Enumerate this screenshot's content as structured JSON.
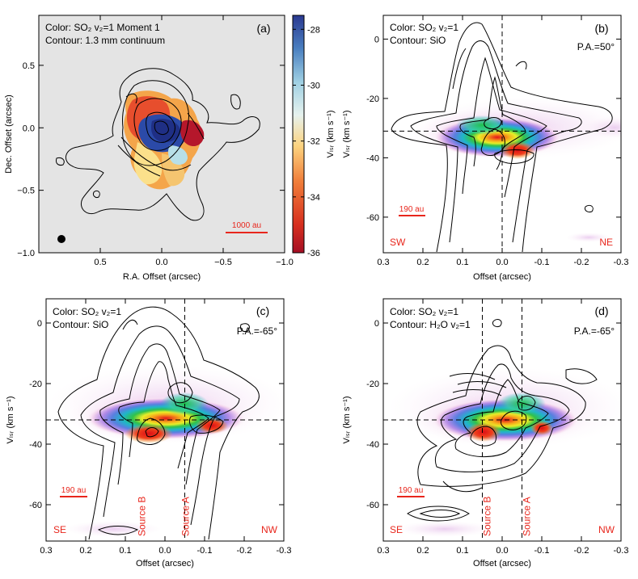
{
  "colors": {
    "accent_red": "#e8261c",
    "panel_a_bg": "#e4e4e4",
    "colorbar": [
      "#b2182b",
      "#e34a33",
      "#f4a340",
      "#fde58a",
      "#d9efe8",
      "#8cc7de",
      "#4575b4",
      "#2c3e8f"
    ]
  },
  "chart_data": [
    {
      "type": "heatmap",
      "panel": "a",
      "panel_label": "(a)",
      "legend_color": "Color: SO₂ v₂=1 Moment 1",
      "legend_contour": "Contour: 1.3 mm continuum",
      "xlabel": "R.A. Offset (arcsec)",
      "ylabel": "Dec. Offset (arcsec)",
      "xlim": [
        1.0,
        -1.0
      ],
      "ylim": [
        -1.0,
        0.9
      ],
      "xticks": [
        0.5,
        0.0,
        -0.5,
        -1.0
      ],
      "xtick_labels": [
        "0.5",
        "0.0",
        "−0.5",
        "−1.0"
      ],
      "yticks": [
        0.5,
        0.0,
        -0.5,
        -1.0
      ],
      "ytick_labels": [
        "0.5",
        "0.0",
        "−0.5",
        "−1.0"
      ],
      "scale_bar": "1000 au",
      "colorbar": {
        "label": "Vₗₛᵣ (km s⁻¹)",
        "range": [
          -36,
          -27.5
        ],
        "ticks": [
          -28,
          -30,
          -32,
          -34,
          -36
        ],
        "tick_labels": [
          "-28",
          "-30",
          "-32",
          "-34",
          "-36"
        ]
      }
    },
    {
      "type": "heatmap",
      "panel": "b",
      "panel_label": "(b)",
      "legend_color": "Color: SO₂ v₂=1",
      "legend_contour": "Contour: SiO",
      "pa": "P.A.=50°",
      "xlabel": "Offset (arcsec)",
      "ylabel": "Vₗₛᵣ (km s⁻¹)",
      "xlim": [
        0.3,
        -0.3
      ],
      "ylim": [
        -72,
        8
      ],
      "xticks": [
        0.3,
        0.2,
        0.1,
        0.0,
        -0.1,
        -0.2,
        -0.3
      ],
      "xtick_labels": [
        "0.3",
        "0.2",
        "0.1",
        "0.0",
        "-0.1",
        "-0.2",
        "-0.3"
      ],
      "yticks": [
        0,
        -20,
        -40,
        -60
      ],
      "ytick_labels": [
        "0",
        "-20",
        "-40",
        "-60"
      ],
      "ref_v": -31,
      "ref_x": [
        0.0
      ],
      "scale_bar": "190 au",
      "dir_left": "SW",
      "dir_right": "NE",
      "source_labels": []
    },
    {
      "type": "heatmap",
      "panel": "c",
      "panel_label": "(c)",
      "legend_color": "Color: SO₂ v₂=1",
      "legend_contour": "Contour: SiO",
      "pa": "P.A.=-65°",
      "xlabel": "Offset (arcsec)",
      "ylabel": "Vₗₛᵣ (km s⁻¹)",
      "xlim": [
        0.3,
        -0.3
      ],
      "ylim": [
        -72,
        8
      ],
      "xticks": [
        0.3,
        0.2,
        0.1,
        0.0,
        -0.1,
        -0.2,
        -0.3
      ],
      "xtick_labels": [
        "0.3",
        "0.2",
        "0.1",
        "0.0",
        "-0.1",
        "-0.2",
        "-0.3"
      ],
      "yticks": [
        0,
        -20,
        -40,
        -60
      ],
      "ytick_labels": [
        "0",
        "-20",
        "-40",
        "-60"
      ],
      "ref_v": -32,
      "ref_x": [
        -0.05
      ],
      "scale_bar": "190 au",
      "dir_left": "SE",
      "dir_right": "NW",
      "source_labels": [
        {
          "x": 0.06,
          "text": "Source B"
        },
        {
          "x": -0.05,
          "text": "Source A"
        }
      ]
    },
    {
      "type": "heatmap",
      "panel": "d",
      "panel_label": "(d)",
      "legend_color": "Color: SO₂ v₂=1",
      "legend_contour": "Contour: H₂O v₂=1",
      "pa": "P.A.=-65°",
      "xlabel": "Offset (arcsec)",
      "ylabel": "Vₗₛᵣ (km s⁻¹)",
      "xlim": [
        0.3,
        -0.3
      ],
      "ylim": [
        -72,
        8
      ],
      "xticks": [
        0.3,
        0.2,
        0.1,
        0.0,
        -0.1,
        -0.2,
        -0.3
      ],
      "xtick_labels": [
        "0.3",
        "0.2",
        "0.1",
        "0.0",
        "-0.1",
        "-0.2",
        "-0.3"
      ],
      "yticks": [
        0,
        -20,
        -40,
        -60
      ],
      "ytick_labels": [
        "0",
        "-20",
        "-40",
        "-60"
      ],
      "ref_v": -32,
      "ref_x": [
        0.05,
        -0.05
      ],
      "scale_bar": "190 au",
      "dir_left": "SE",
      "dir_right": "NW",
      "source_labels": [
        {
          "x": 0.04,
          "text": "Source B"
        },
        {
          "x": -0.06,
          "text": "Source A"
        }
      ]
    }
  ]
}
